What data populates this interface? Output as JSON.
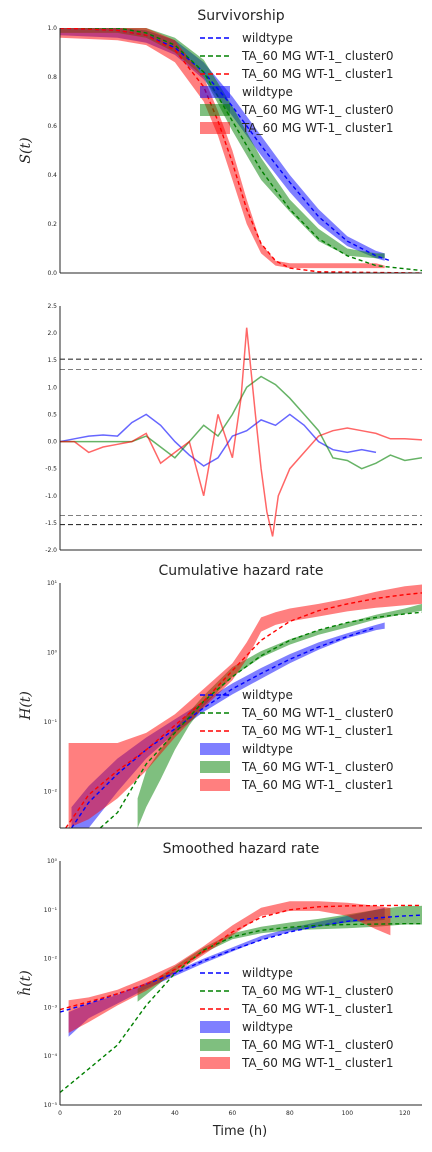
{
  "figure": {
    "xlabel": "Time (h)"
  },
  "legend_labels": [
    "wildtype",
    "TA_60 MG WT-1_ cluster0",
    "TA_60 MG WT-1_ cluster1",
    "wildtype",
    "TA_60 MG WT-1_ cluster0",
    "TA_60 MG WT-1_ cluster1"
  ],
  "colors": {
    "wildtype": "#0000ff",
    "cluster0": "#008000",
    "cluster1": "#ff0000"
  },
  "chart_data": [
    {
      "type": "line",
      "title": "Survivorship",
      "ylabel": "S(t)",
      "xlim": [
        0,
        126
      ],
      "ylim": [
        0,
        1.0
      ],
      "yticks": [
        0.0,
        0.2,
        0.4,
        0.6,
        0.8,
        1.0
      ],
      "ytick_labels": [
        "0.0",
        "0.2",
        "0.4",
        "0.6",
        "0.8",
        "1.0"
      ],
      "legend": "upper-right",
      "fits": [
        {
          "name": "wildtype",
          "x": [
            0,
            20,
            30,
            40,
            50,
            60,
            70,
            80,
            90,
            100,
            110,
            115
          ],
          "y": [
            1.0,
            0.99,
            0.97,
            0.92,
            0.82,
            0.68,
            0.52,
            0.37,
            0.23,
            0.13,
            0.07,
            0.05
          ]
        },
        {
          "name": "TA_60 MG WT-1_ cluster0",
          "x": [
            0,
            20,
            30,
            40,
            50,
            60,
            70,
            80,
            90,
            100,
            110,
            126
          ],
          "y": [
            1.0,
            1.0,
            0.98,
            0.93,
            0.82,
            0.62,
            0.42,
            0.26,
            0.14,
            0.07,
            0.03,
            0.01
          ]
        },
        {
          "name": "TA_60 MG WT-1_ cluster1",
          "x": [
            0,
            20,
            30,
            40,
            50,
            55,
            60,
            65,
            70,
            75,
            80,
            90,
            126
          ],
          "y": [
            1.0,
            0.99,
            0.97,
            0.91,
            0.76,
            0.62,
            0.45,
            0.26,
            0.12,
            0.05,
            0.02,
            0.005,
            0.0
          ]
        }
      ],
      "bands": [
        {
          "name": "wildtype",
          "x": [
            0,
            20,
            30,
            40,
            50,
            60,
            70,
            80,
            90,
            100,
            110,
            113
          ],
          "lo": [
            0.97,
            0.96,
            0.94,
            0.89,
            0.79,
            0.64,
            0.48,
            0.33,
            0.2,
            0.11,
            0.06,
            0.05
          ],
          "hi": [
            1.0,
            1.0,
            0.99,
            0.95,
            0.86,
            0.72,
            0.56,
            0.4,
            0.26,
            0.15,
            0.09,
            0.08
          ]
        },
        {
          "name": "TA_60 MG WT-1_ cluster0",
          "x": [
            0,
            20,
            30,
            40,
            50,
            60,
            70,
            80,
            90,
            100,
            110,
            113
          ],
          "lo": [
            0.98,
            0.98,
            0.96,
            0.9,
            0.8,
            0.58,
            0.38,
            0.25,
            0.13,
            0.07,
            0.06,
            0.06
          ],
          "hi": [
            1.0,
            1.0,
            1.0,
            0.96,
            0.87,
            0.68,
            0.47,
            0.3,
            0.18,
            0.1,
            0.08,
            0.08
          ]
        },
        {
          "name": "TA_60 MG WT-1_ cluster1",
          "x": [
            0,
            20,
            30,
            40,
            50,
            55,
            60,
            65,
            70,
            75,
            80,
            90,
            100,
            110,
            113
          ],
          "lo": [
            0.96,
            0.95,
            0.93,
            0.86,
            0.7,
            0.56,
            0.38,
            0.2,
            0.08,
            0.03,
            0.02,
            0.02,
            0.02,
            0.02,
            0.02
          ],
          "hi": [
            1.0,
            1.0,
            1.0,
            0.95,
            0.8,
            0.66,
            0.5,
            0.3,
            0.12,
            0.05,
            0.04,
            0.04,
            0.04,
            0.04,
            0.03
          ]
        }
      ]
    },
    {
      "type": "line",
      "title": "",
      "ylabel": "",
      "xlim": [
        0,
        126
      ],
      "ylim": [
        -2.0,
        2.5
      ],
      "yticks": [
        -2.0,
        -1.5,
        -1.0,
        -0.5,
        0.0,
        0.5,
        1.0,
        1.5,
        2.0,
        2.5
      ],
      "ytick_labels": [
        "-2.0",
        "-1.5",
        "-1.0",
        "-0.5",
        "0.0",
        "0.5",
        "1.0",
        "1.5",
        "2.0",
        "2.5"
      ],
      "hlines": [
        1.52,
        1.33,
        -1.36,
        -1.53
      ],
      "series": [
        {
          "name": "wildtype",
          "x": [
            0,
            5,
            10,
            15,
            20,
            25,
            30,
            35,
            40,
            45,
            50,
            55,
            60,
            65,
            70,
            75,
            80,
            85,
            90,
            95,
            100,
            105,
            110
          ],
          "y": [
            0.0,
            0.05,
            0.1,
            0.12,
            0.1,
            0.35,
            0.5,
            0.3,
            0.0,
            -0.25,
            -0.45,
            -0.3,
            0.1,
            0.2,
            0.4,
            0.3,
            0.5,
            0.3,
            0.0,
            -0.15,
            -0.2,
            -0.15,
            -0.2
          ]
        },
        {
          "name": "TA_60 MG WT-1_ cluster0",
          "x": [
            0,
            10,
            20,
            25,
            30,
            35,
            40,
            45,
            50,
            55,
            60,
            65,
            70,
            75,
            80,
            85,
            90,
            95,
            100,
            105,
            110,
            115,
            120,
            126
          ],
          "y": [
            0.0,
            0.0,
            0.0,
            0.0,
            0.1,
            -0.1,
            -0.3,
            0.0,
            0.3,
            0.1,
            0.5,
            1.0,
            1.2,
            1.05,
            0.8,
            0.5,
            0.2,
            -0.3,
            -0.35,
            -0.5,
            -0.4,
            -0.25,
            -0.35,
            -0.3
          ]
        },
        {
          "name": "TA_60 MG WT-1_ cluster1",
          "x": [
            0,
            5,
            10,
            15,
            20,
            25,
            30,
            35,
            40,
            45,
            50,
            55,
            60,
            63,
            65,
            68,
            70,
            72,
            74,
            76,
            80,
            85,
            90,
            95,
            100,
            105,
            110,
            115,
            120,
            126
          ],
          "y": [
            0.0,
            0.0,
            -0.2,
            -0.1,
            -0.05,
            0.0,
            0.15,
            -0.4,
            -0.2,
            0.0,
            -1.0,
            0.5,
            -0.3,
            0.8,
            2.1,
            0.5,
            -0.5,
            -1.3,
            -1.75,
            -1.0,
            -0.5,
            -0.2,
            0.1,
            0.2,
            0.25,
            0.2,
            0.15,
            0.05,
            0.05,
            0.03
          ]
        }
      ]
    },
    {
      "type": "line",
      "title": "Cumulative hazard rate",
      "ylabel": "H(t)",
      "xlim": [
        0,
        126
      ],
      "yscale": "log",
      "ylim": [
        0.003,
        10
      ],
      "yticks": [
        0.01,
        0.1,
        1,
        10
      ],
      "ytick_labels": [
        "10⁻²",
        "10⁻¹",
        "10⁰",
        "10¹"
      ],
      "legend": "lower-right",
      "fits": [
        {
          "name": "wildtype",
          "x": [
            4,
            10,
            20,
            30,
            40,
            50,
            60,
            70,
            80,
            90,
            100,
            110
          ],
          "y": [
            0.003,
            0.007,
            0.018,
            0.04,
            0.08,
            0.16,
            0.3,
            0.5,
            0.8,
            1.2,
            1.7,
            2.3
          ]
        },
        {
          "name": "TA_60 MG WT-1_ cluster0",
          "x": [
            14,
            20,
            30,
            40,
            50,
            60,
            70,
            80,
            90,
            100,
            110,
            120,
            126
          ],
          "y": [
            0.003,
            0.005,
            0.025,
            0.07,
            0.2,
            0.45,
            0.9,
            1.5,
            2.1,
            2.7,
            3.2,
            3.6,
            3.8
          ]
        },
        {
          "name": "TA_60 MG WT-1_ cluster1",
          "x": [
            2,
            10,
            20,
            30,
            40,
            50,
            60,
            70,
            80,
            90,
            100,
            110,
            120,
            126
          ],
          "y": [
            0.003,
            0.009,
            0.02,
            0.04,
            0.09,
            0.2,
            0.55,
            1.5,
            2.8,
            4.0,
            5.0,
            6.0,
            6.8,
            7.2
          ]
        }
      ],
      "bands": [
        {
          "name": "wildtype",
          "x": [
            4,
            10,
            20,
            30,
            40,
            50,
            60,
            70,
            80,
            90,
            100,
            110,
            113
          ],
          "lo": [
            0.003,
            0.003,
            0.01,
            0.03,
            0.07,
            0.14,
            0.25,
            0.42,
            0.7,
            1.1,
            1.6,
            2.1,
            2.2
          ],
          "hi": [
            0.006,
            0.012,
            0.03,
            0.06,
            0.11,
            0.2,
            0.36,
            0.6,
            0.95,
            1.4,
            1.9,
            2.5,
            2.7
          ]
        },
        {
          "name": "TA_60 MG WT-1_ cluster0",
          "x": [
            27,
            30,
            35,
            40,
            45,
            50,
            60,
            70,
            80,
            90,
            100,
            110,
            120,
            126
          ],
          "lo": [
            0.003,
            0.006,
            0.015,
            0.04,
            0.09,
            0.17,
            0.45,
            0.85,
            1.3,
            1.8,
            2.3,
            3.0,
            3.6,
            4.0
          ],
          "hi": [
            0.008,
            0.02,
            0.04,
            0.08,
            0.14,
            0.24,
            0.62,
            1.05,
            1.55,
            2.1,
            2.7,
            3.5,
            4.3,
            5.0
          ]
        },
        {
          "name": "TA_60 MG WT-1_ cluster1",
          "x": [
            3,
            10,
            20,
            30,
            40,
            50,
            60,
            65,
            70,
            75,
            80,
            90,
            100,
            110,
            120,
            126
          ],
          "lo": [
            0.003,
            0.004,
            0.008,
            0.02,
            0.06,
            0.16,
            0.4,
            0.8,
            2.0,
            2.5,
            2.8,
            3.3,
            3.9,
            4.4,
            4.8,
            5.0
          ],
          "hi": [
            0.05,
            0.05,
            0.05,
            0.07,
            0.13,
            0.3,
            0.7,
            1.4,
            3.2,
            3.8,
            4.3,
            5.0,
            6.0,
            7.5,
            9.0,
            9.5
          ]
        }
      ]
    },
    {
      "type": "line",
      "title": "Smoothed hazard rate",
      "ylabel": "ĥ(t)",
      "xlabel": "Time (h)",
      "xlim": [
        0,
        126
      ],
      "xticks": [
        0,
        20,
        40,
        60,
        80,
        100,
        120
      ],
      "xtick_labels": [
        "0",
        "20",
        "40",
        "60",
        "80",
        "100",
        "120"
      ],
      "yscale": "log",
      "ylim": [
        1e-05,
        1
      ],
      "yticks": [
        1e-05,
        0.0001,
        0.001,
        0.01,
        0.1,
        1
      ],
      "ytick_labels": [
        "10⁻⁵",
        "10⁻⁴",
        "10⁻³",
        "10⁻²",
        "10⁻¹",
        "10⁰"
      ],
      "legend": "lower-right",
      "fits": [
        {
          "name": "wildtype",
          "x": [
            0,
            10,
            20,
            30,
            40,
            50,
            60,
            70,
            80,
            90,
            100,
            110,
            120,
            126
          ],
          "y": [
            0.0008,
            0.0012,
            0.0019,
            0.003,
            0.005,
            0.009,
            0.015,
            0.024,
            0.035,
            0.047,
            0.058,
            0.068,
            0.075,
            0.078
          ]
        },
        {
          "name": "TA_60 MG WT-1_ cluster0",
          "x": [
            0,
            10,
            20,
            30,
            40,
            50,
            60,
            70,
            80,
            90,
            100,
            110,
            120,
            126
          ],
          "y": [
            1.8e-05,
            5.5e-05,
            0.00017,
            0.0011,
            0.005,
            0.015,
            0.028,
            0.038,
            0.044,
            0.048,
            0.05,
            0.051,
            0.052,
            0.052
          ]
        },
        {
          "name": "TA_60 MG WT-1_ cluster1",
          "x": [
            0,
            10,
            20,
            30,
            40,
            50,
            60,
            70,
            80,
            90,
            100,
            110,
            120,
            126
          ],
          "y": [
            0.0009,
            0.0013,
            0.0019,
            0.003,
            0.006,
            0.014,
            0.035,
            0.07,
            0.1,
            0.115,
            0.12,
            0.122,
            0.123,
            0.123
          ]
        }
      ],
      "bands": [
        {
          "name": "wildtype",
          "x": [
            3,
            10,
            20,
            30,
            40,
            50,
            60,
            70,
            80,
            90,
            100,
            110,
            113
          ],
          "lo": [
            0.00025,
            0.0006,
            0.0012,
            0.0024,
            0.0044,
            0.008,
            0.014,
            0.024,
            0.035,
            0.045,
            0.055,
            0.06,
            0.062
          ],
          "hi": [
            0.0008,
            0.0012,
            0.0018,
            0.0032,
            0.0055,
            0.01,
            0.017,
            0.029,
            0.042,
            0.057,
            0.075,
            0.1,
            0.11
          ]
        },
        {
          "name": "TA_60 MG WT-1_ cluster0",
          "x": [
            27,
            30,
            35,
            40,
            45,
            50,
            60,
            70,
            80,
            90,
            100,
            110,
            120,
            126
          ],
          "lo": [
            0.0013,
            0.0018,
            0.0032,
            0.0055,
            0.0085,
            0.013,
            0.025,
            0.033,
            0.038,
            0.04,
            0.042,
            0.045,
            0.05,
            0.05
          ],
          "hi": [
            0.0024,
            0.003,
            0.0045,
            0.007,
            0.011,
            0.017,
            0.033,
            0.045,
            0.055,
            0.065,
            0.08,
            0.1,
            0.12,
            0.12
          ]
        },
        {
          "name": "TA_60 MG WT-1_ cluster1",
          "x": [
            3,
            10,
            20,
            30,
            40,
            50,
            60,
            70,
            80,
            90,
            100,
            105,
            110,
            115
          ],
          "lo": [
            0.0003,
            0.0005,
            0.0011,
            0.0022,
            0.005,
            0.012,
            0.03,
            0.075,
            0.095,
            0.095,
            0.075,
            0.055,
            0.04,
            0.03
          ],
          "hi": [
            0.0014,
            0.0016,
            0.0023,
            0.004,
            0.0075,
            0.018,
            0.048,
            0.11,
            0.15,
            0.15,
            0.14,
            0.13,
            0.12,
            0.11
          ]
        }
      ]
    }
  ]
}
